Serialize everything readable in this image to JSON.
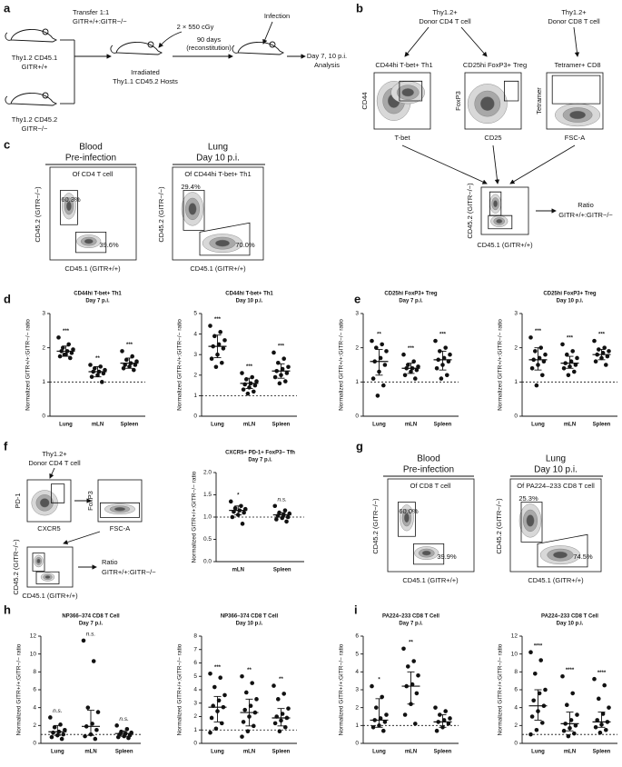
{
  "panel_labels": [
    "a",
    "b",
    "c",
    "d",
    "e",
    "f",
    "g",
    "h",
    "i"
  ],
  "figure": {
    "a": [
      "Transfer 1:1",
      "GITR+/+:GITR−/−",
      "Thy1.2 CD45.1",
      "GITR+/+",
      "Thy1.2 CD45.2",
      "GITR−/−",
      "2 × 550 cGy",
      "Irradiated",
      "Thy1.1 CD45.2 Hosts",
      "90 days",
      "(reconstitution)",
      "Infection",
      "Day 7, 10 p.i.",
      "Analysis"
    ],
    "b": [
      "Thy1.2+",
      "Donor CD4 T cell",
      "Thy1.2+",
      "Donor CD8 T cell",
      "CD44hi T-bet+ Th1",
      "CD25hi FoxP3+ Treg",
      "Tetramer+ CD8",
      "CD44",
      "T-bet",
      "FoxP3",
      "CD25",
      "Tetramer",
      "FSC-A",
      "CD45.2 (GITR−/−)",
      "CD45.1 (GITR+/+)",
      "Ratio",
      "GITR+/+:GITR−/−"
    ],
    "c": [
      "Blood",
      "Pre-infection",
      "Of CD4 T cell",
      "60.3%",
      "39.6%",
      "CD45.2 (GITR−/−)",
      "CD45.1 (GITR+/+)",
      "Lung",
      "Day 10 p.i.",
      "Of CD44hi T-bet+ Th1",
      "29.4%",
      "70.0%",
      "CD45.2 (GITR−/−)",
      "CD45.1 (GITR+/+)"
    ],
    "f": [
      "Thy1.2+",
      "Donor CD4 T cell",
      "PD-1",
      "CXCR5",
      "FoxP3",
      "FSC-A",
      "CD45.2 (GITR−/−)",
      "CD45.1 (GITR+/+)",
      "Ratio",
      "GITR+/+:GITR−/−"
    ],
    "g": [
      "Blood",
      "Pre-infection",
      "Of CD8 T cell",
      "60.0%",
      "39.9%",
      "CD45.2 (GITR−/−)",
      "CD45.1 (GITR+/+)",
      "Lung",
      "Day 10 p.i.",
      "Of PA224–233 CD8 T cell",
      "25.3%",
      "74.5%",
      "CD45.2 (GITR−/−)",
      "CD45.1 (GITR+/+)"
    ]
  },
  "chart_data": [
    {
      "type": "dot",
      "title": "CD44hi T-bet+ Th1",
      "subtitle": "Day 7 p.i.",
      "ylabel": "Normalized GITR+/+:GITR−/− ratio",
      "categories": [
        "Lung",
        "mLN",
        "Spleen"
      ],
      "ylim": [
        0,
        3
      ],
      "yticks": [
        0,
        1,
        2,
        3
      ],
      "reference_line": 1,
      "groups": [
        {
          "values": [
            2.3,
            2.1,
            2.0,
            1.95,
            1.9,
            1.9,
            1.85,
            1.8,
            1.75,
            1.7,
            1.8
          ],
          "mean": 1.9,
          "err_low": 1.75,
          "err_high": 2.05,
          "sig": "***"
        },
        {
          "values": [
            1.5,
            1.45,
            1.4,
            1.35,
            1.3,
            1.3,
            1.25,
            1.2,
            1.15,
            1.0
          ],
          "mean": 1.3,
          "err_low": 1.15,
          "err_high": 1.45,
          "sig": "**"
        },
        {
          "values": [
            1.9,
            1.75,
            1.65,
            1.6,
            1.55,
            1.5,
            1.5,
            1.45,
            1.4,
            1.35
          ],
          "mean": 1.55,
          "err_low": 1.4,
          "err_high": 1.7,
          "sig": "***"
        }
      ]
    },
    {
      "type": "dot",
      "title": "CD44hi T-bet+ Th1",
      "subtitle": "Day 10 p.i.",
      "ylabel": "Normalized GITR+/+:GITR−/− ratio",
      "categories": [
        "Lung",
        "mLN",
        "Spleen"
      ],
      "ylim": [
        0,
        5
      ],
      "yticks": [
        0,
        1,
        2,
        3,
        4,
        5
      ],
      "reference_line": 1,
      "groups": [
        {
          "values": [
            4.4,
            4.1,
            3.9,
            3.7,
            3.5,
            3.4,
            3.3,
            3.0,
            2.8,
            2.6,
            2.4
          ],
          "mean": 3.4,
          "err_low": 2.85,
          "err_high": 3.95,
          "sig": "***"
        },
        {
          "values": [
            2.1,
            1.9,
            1.8,
            1.7,
            1.6,
            1.55,
            1.5,
            1.4,
            1.3,
            1.2,
            1.1
          ],
          "mean": 1.6,
          "err_low": 1.35,
          "err_high": 1.85,
          "sig": "***"
        },
        {
          "values": [
            3.1,
            2.8,
            2.6,
            2.4,
            2.3,
            2.2,
            2.1,
            2.0,
            1.9,
            1.7,
            1.6
          ],
          "mean": 2.2,
          "err_low": 1.85,
          "err_high": 2.55,
          "sig": "***"
        }
      ]
    },
    {
      "type": "dot",
      "title": "CD25hi FoxP3+ Treg",
      "subtitle": "Day 7 p.i.",
      "ylabel": "Normalized GITR+/+:GITR−/− ratio",
      "categories": [
        "Lung",
        "mLN",
        "Spleen"
      ],
      "ylim": [
        0,
        3
      ],
      "yticks": [
        0,
        1,
        2,
        3
      ],
      "reference_line": 1,
      "groups": [
        {
          "values": [
            2.2,
            2.1,
            2.0,
            1.9,
            1.7,
            1.6,
            1.5,
            1.3,
            1.1,
            0.9,
            0.6
          ],
          "mean": 1.6,
          "err_low": 1.2,
          "err_high": 1.95,
          "sig": "**"
        },
        {
          "values": [
            1.8,
            1.6,
            1.5,
            1.45,
            1.4,
            1.4,
            1.35,
            1.3,
            1.2,
            1.1
          ],
          "mean": 1.4,
          "err_low": 1.25,
          "err_high": 1.55,
          "sig": "***"
        },
        {
          "values": [
            2.2,
            2.0,
            1.9,
            1.8,
            1.7,
            1.65,
            1.6,
            1.5,
            1.4,
            1.2,
            1.1
          ],
          "mean": 1.65,
          "err_low": 1.35,
          "err_high": 1.9,
          "sig": "***"
        }
      ]
    },
    {
      "type": "dot",
      "title": "CD25hi FoxP3+ Treg",
      "subtitle": "Day 10 p.i.",
      "ylabel": "Normalized GITR+/+:GITR−/− ratio",
      "categories": [
        "Lung",
        "mLN",
        "Spleen"
      ],
      "ylim": [
        0,
        3
      ],
      "yticks": [
        0,
        1,
        2,
        3
      ],
      "reference_line": 1,
      "groups": [
        {
          "values": [
            2.3,
            2.0,
            1.9,
            1.8,
            1.7,
            1.65,
            1.6,
            1.5,
            1.4,
            1.2,
            0.9
          ],
          "mean": 1.65,
          "err_low": 1.35,
          "err_high": 2.0,
          "sig": "***"
        },
        {
          "values": [
            2.1,
            1.9,
            1.8,
            1.7,
            1.6,
            1.55,
            1.5,
            1.45,
            1.4,
            1.3,
            1.2
          ],
          "mean": 1.55,
          "err_low": 1.4,
          "err_high": 1.75,
          "sig": "***"
        },
        {
          "values": [
            2.2,
            2.0,
            1.95,
            1.9,
            1.85,
            1.8,
            1.75,
            1.7,
            1.6,
            1.5
          ],
          "mean": 1.8,
          "err_low": 1.65,
          "err_high": 1.95,
          "sig": "***"
        }
      ]
    },
    {
      "type": "dot",
      "title": "CXCR5+ PD-1+ FoxP3− Tfh",
      "subtitle": "Day 7 p.i.",
      "ylabel": "Normalized GITR+/+:GITR−/− ratio",
      "categories": [
        "mLN",
        "Spleen"
      ],
      "ylim": [
        0,
        2
      ],
      "yticks": [
        {
          "value": 0,
          "label": "0.0"
        },
        {
          "value": 0.5,
          "label": "0.5"
        },
        {
          "value": 1,
          "label": "1.0"
        },
        {
          "value": 1.5,
          "label": "1.5"
        },
        {
          "value": 2,
          "label": "2.0"
        }
      ],
      "reference_line": 1,
      "groups": [
        {
          "values": [
            1.35,
            1.25,
            1.2,
            1.18,
            1.15,
            1.12,
            1.1,
            1.05,
            1.0,
            0.85
          ],
          "mean": 1.15,
          "err_low": 1.05,
          "err_high": 1.25,
          "sig": "*"
        },
        {
          "values": [
            1.25,
            1.15,
            1.1,
            1.08,
            1.05,
            1.03,
            1.0,
            0.98,
            0.95,
            0.9
          ],
          "mean": 1.05,
          "err_low": 1.0,
          "err_high": 1.1,
          "sig": "n.s."
        }
      ]
    },
    {
      "type": "dot",
      "title": "NP366–374 CD8 T Cell",
      "subtitle": "Day 7 p.i.",
      "ylabel": "Normalized GITR+/+:GITR−/− ratio",
      "categories": [
        "Lung",
        "mLN",
        "Spleen"
      ],
      "ylim": [
        0,
        12
      ],
      "yticks": [
        0,
        2,
        4,
        6,
        8,
        10,
        12
      ],
      "reference_line": 1,
      "groups": [
        {
          "values": [
            2.9,
            2.1,
            1.8,
            1.5,
            1.3,
            1.2,
            1.0,
            0.9,
            0.7,
            0.5
          ],
          "mean": 1.3,
          "err_low": 0.9,
          "err_high": 2.0,
          "sig": "n.s."
        },
        {
          "values": [
            11.5,
            9.2,
            4.0,
            3.5,
            2.2,
            1.9,
            1.5,
            1.0,
            0.8,
            0.5
          ],
          "mean": 1.9,
          "err_low": 0.9,
          "err_high": 3.7,
          "sig": "n.s."
        },
        {
          "values": [
            2.0,
            1.6,
            1.3,
            1.2,
            1.1,
            1.0,
            0.9,
            0.8,
            0.7,
            0.6
          ],
          "mean": 1.1,
          "err_low": 0.8,
          "err_high": 1.4,
          "sig": "n.s."
        }
      ]
    },
    {
      "type": "dot",
      "title": "NP366–374 CD8 T Cell",
      "subtitle": "Day 10 p.i.",
      "ylabel": "Normalized GITR+/+:GITR−/− ratio",
      "categories": [
        "Lung",
        "mLN",
        "Spleen"
      ],
      "ylim": [
        0,
        8
      ],
      "yticks": [
        0,
        1,
        2,
        3,
        4,
        5,
        6,
        7,
        8
      ],
      "reference_line": 1,
      "groups": [
        {
          "values": [
            5.2,
            4.9,
            4.2,
            3.6,
            3.2,
            2.8,
            2.7,
            2.4,
            1.9,
            1.5,
            1.1,
            0.8
          ],
          "mean": 2.7,
          "err_low": 1.6,
          "err_high": 3.5,
          "sig": "***"
        },
        {
          "values": [
            5.0,
            4.5,
            3.8,
            3.3,
            2.8,
            2.5,
            2.3,
            2.0,
            1.6,
            1.3,
            0.9,
            0.5
          ],
          "mean": 2.3,
          "err_low": 1.3,
          "err_high": 3.3,
          "sig": "**"
        },
        {
          "values": [
            4.3,
            3.7,
            3.3,
            2.6,
            2.2,
            2.0,
            1.9,
            1.7,
            1.5,
            1.2,
            0.9
          ],
          "mean": 1.9,
          "err_low": 1.3,
          "err_high": 2.6,
          "sig": "**"
        }
      ]
    },
    {
      "type": "dot",
      "title": "PA224–233 CD8 T Cell",
      "subtitle": "Day 7 p.i.",
      "ylabel": "Normalized GITR+/+:GITR−/− ratio",
      "categories": [
        "Lung",
        "mLN",
        "Spleen"
      ],
      "ylim": [
        0,
        6
      ],
      "yticks": [
        0,
        1,
        2,
        3,
        4,
        5,
        6
      ],
      "reference_line": 1,
      "groups": [
        {
          "values": [
            3.2,
            2.6,
            2.0,
            1.6,
            1.4,
            1.3,
            1.2,
            1.0,
            0.9,
            0.7
          ],
          "mean": 1.3,
          "err_low": 0.9,
          "err_high": 2.5,
          "sig": "*"
        },
        {
          "values": [
            5.3,
            4.6,
            4.3,
            3.8,
            3.3,
            3.2,
            2.8,
            2.2,
            1.6,
            1.1
          ],
          "mean": 3.2,
          "err_low": 2.2,
          "err_high": 4.0,
          "sig": "**"
        },
        {
          "values": [
            2.0,
            1.8,
            1.6,
            1.4,
            1.3,
            1.2,
            1.1,
            0.9,
            0.7
          ],
          "mean": 1.2,
          "err_low": 0.9,
          "err_high": 1.6,
          "sig": null
        }
      ]
    },
    {
      "type": "dot",
      "title": "PA224–233 CD8 T Cell",
      "subtitle": "Day 10 p.i.",
      "ylabel": "Normalized GITR+/+:GITR−/− ratio",
      "categories": [
        "Lung",
        "mLN",
        "Spleen"
      ],
      "ylim": [
        0,
        12
      ],
      "yticks": [
        0,
        2,
        4,
        6,
        8,
        10,
        12
      ],
      "reference_line": 1,
      "groups": [
        {
          "values": [
            10.2,
            9.3,
            7.8,
            6.0,
            5.6,
            4.8,
            4.2,
            3.6,
            3.0,
            2.3,
            1.5,
            1.0
          ],
          "mean": 4.2,
          "err_low": 2.6,
          "err_high": 6.0,
          "sig": "****"
        },
        {
          "values": [
            7.5,
            5.6,
            4.3,
            3.2,
            2.6,
            2.2,
            2.0,
            1.7,
            1.4,
            1.1,
            0.8
          ],
          "mean": 2.2,
          "err_low": 1.4,
          "err_high": 3.5,
          "sig": "****"
        },
        {
          "values": [
            7.2,
            6.5,
            5.0,
            4.0,
            3.3,
            2.6,
            2.4,
            2.1,
            1.8,
            1.5,
            1.2
          ],
          "mean": 2.4,
          "err_low": 1.8,
          "err_high": 3.5,
          "sig": "****"
        }
      ]
    }
  ]
}
